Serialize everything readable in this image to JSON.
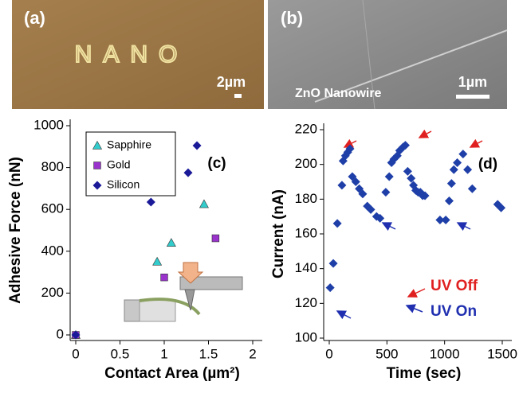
{
  "images": [
    {
      "label": "(a)",
      "text": "NANO",
      "scale": "2µm"
    },
    {
      "label": "(b)",
      "text": "ZnO Nanowire",
      "scale": "1µm"
    }
  ],
  "chart_data": [
    {
      "type": "scatter",
      "annotation": "(c)",
      "x_label": "Contact Area (µm²)",
      "y_label": "Adhesive Force (nN)",
      "xlim": [
        0,
        2
      ],
      "xticks": [
        0,
        0.5,
        1,
        1.5,
        2
      ],
      "ylim": [
        0,
        1000
      ],
      "yticks": [
        0,
        200,
        400,
        600,
        800,
        1000
      ],
      "legend": "upper left",
      "series": [
        {
          "name": "Sapphire",
          "color": "#33cccc",
          "marker": "triangle",
          "x": [
            0,
            0.92,
            1.08,
            1.45
          ],
          "values": [
            0,
            350,
            440,
            625
          ]
        },
        {
          "name": "Gold",
          "color": "#9933cc",
          "marker": "square",
          "x": [
            0,
            1.0,
            1.58
          ],
          "values": [
            0,
            275,
            462
          ]
        },
        {
          "name": "Silicon",
          "color": "#1a1a99",
          "marker": "diamond",
          "x": [
            0,
            0.85,
            1.27,
            1.37
          ],
          "values": [
            0,
            635,
            775,
            905
          ]
        }
      ]
    },
    {
      "type": "scatter",
      "annotation": "(d)",
      "annotations": [
        "UV Off",
        "UV On"
      ],
      "x_label": "Time (sec)",
      "y_label": "Current (nA)",
      "xlim": [
        0,
        1500
      ],
      "xticks": [
        0,
        500,
        1000,
        1500
      ],
      "ylim": [
        100,
        220
      ],
      "yticks": [
        100,
        120,
        140,
        160,
        180,
        200,
        220
      ],
      "series": [
        {
          "color": "#1f3fa8",
          "marker": "diamond",
          "x": [
            8,
            35,
            70,
            110,
            120,
            140,
            160,
            180,
            200,
            230,
            260,
            290,
            330,
            360,
            410,
            440,
            490,
            520,
            540,
            560,
            590,
            610,
            640,
            660,
            680,
            710,
            730,
            750,
            770,
            790,
            810,
            830,
            960,
            1010,
            1040,
            1060,
            1080,
            1110,
            1160,
            1200,
            1240,
            1460,
            1490
          ],
          "values": [
            129,
            143,
            166,
            188,
            202,
            205,
            207,
            209,
            193,
            190,
            186,
            183,
            176,
            174,
            170,
            169,
            184,
            193,
            201,
            203,
            205,
            208,
            210,
            211,
            196,
            192,
            188,
            185,
            184,
            184,
            182,
            182,
            168,
            168,
            179,
            189,
            197,
            201,
            206,
            197,
            186,
            177,
            175
          ]
        }
      ]
    }
  ]
}
